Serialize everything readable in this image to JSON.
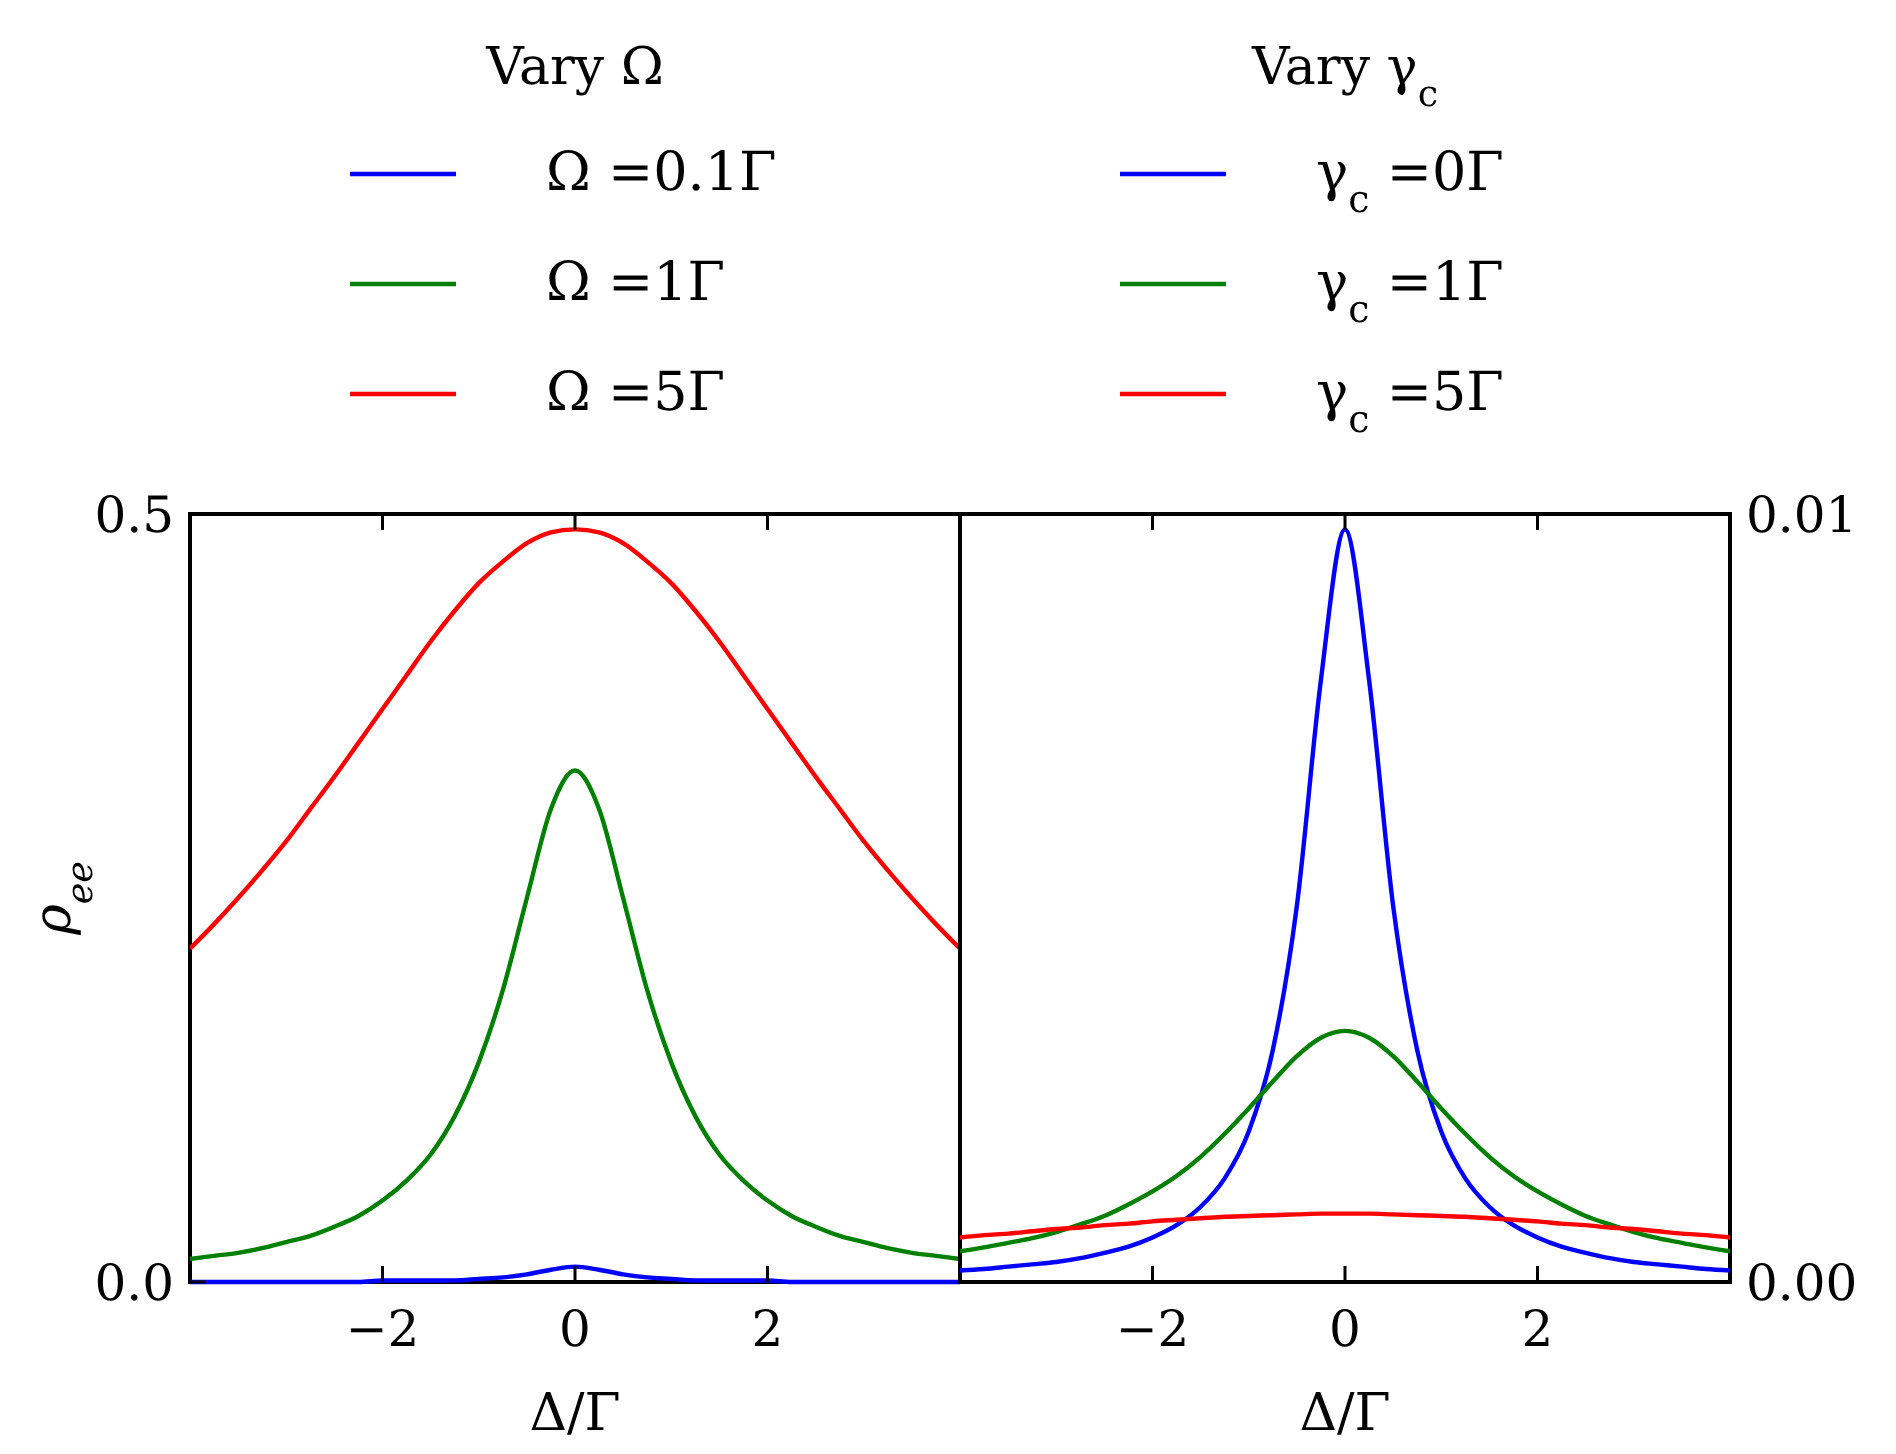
{
  "chart_data": [
    {
      "type": "line",
      "legend_title": "Vary Ω",
      "legend": "top",
      "xlabel": "Δ/Γ",
      "ylabel": "ρ$_{ee}$",
      "x": [
        -4,
        -3.75,
        -3.5,
        -3.25,
        -3,
        -2.75,
        -2.5,
        -2.25,
        -2,
        -1.75,
        -1.5,
        -1.25,
        -1,
        -0.75,
        -0.5,
        -0.25,
        0,
        0.25,
        0.5,
        0.75,
        1,
        1.25,
        1.5,
        1.75,
        2,
        2.25,
        2.5,
        2.75,
        3,
        3.25,
        3.5,
        3.75,
        4
      ],
      "xlim": [
        -4,
        4
      ],
      "xticks": [
        {
          "value": -2,
          "label": "−2"
        },
        {
          "value": 0,
          "label": "0"
        },
        {
          "value": 2,
          "label": "2"
        }
      ],
      "ylim": [
        0,
        0.5
      ],
      "yticks": [
        {
          "value": 0,
          "label": "0.0"
        },
        {
          "value": 0.5,
          "label": "0.5"
        }
      ],
      "series": [
        {
          "name": "Ω =0.1Γ",
          "color": "#0000ff",
          "values": [
            0,
            0,
            0,
            0,
            0,
            0,
            0,
            0,
            0.001,
            0.001,
            0.001,
            0.001,
            0.002,
            0.003,
            0.005,
            0.008,
            0.01,
            0.008,
            0.005,
            0.003,
            0.002,
            0.001,
            0.001,
            0.001,
            0.001,
            0,
            0,
            0,
            0,
            0,
            0,
            0,
            0
          ]
        },
        {
          "name": "Ω =1Γ",
          "color": "#008000",
          "values": [
            0.015,
            0.017,
            0.019,
            0.022,
            0.026,
            0.03,
            0.036,
            0.043,
            0.053,
            0.066,
            0.083,
            0.108,
            0.143,
            0.19,
            0.25,
            0.308,
            0.333,
            0.308,
            0.25,
            0.19,
            0.143,
            0.108,
            0.083,
            0.066,
            0.053,
            0.043,
            0.036,
            0.03,
            0.026,
            0.022,
            0.019,
            0.017,
            0.015
          ]
        },
        {
          "name": "Ω =5Γ",
          "color": "#ff0000",
          "values": [
            0.217,
            0.233,
            0.25,
            0.268,
            0.287,
            0.308,
            0.329,
            0.351,
            0.373,
            0.395,
            0.417,
            0.437,
            0.455,
            0.469,
            0.481,
            0.488,
            0.49,
            0.488,
            0.481,
            0.469,
            0.455,
            0.437,
            0.417,
            0.395,
            0.373,
            0.351,
            0.329,
            0.308,
            0.287,
            0.268,
            0.25,
            0.233,
            0.217
          ]
        }
      ]
    },
    {
      "type": "line",
      "legend_title": "Vary γ$_{c}$",
      "legend": "top",
      "xlabel": "Δ/Γ",
      "x": [
        -4,
        -3.75,
        -3.5,
        -3.25,
        -3,
        -2.75,
        -2.5,
        -2.25,
        -2,
        -1.75,
        -1.5,
        -1.25,
        -1,
        -0.75,
        -0.5,
        -0.25,
        0,
        0.25,
        0.5,
        0.75,
        1,
        1.25,
        1.5,
        1.75,
        2,
        2.25,
        2.5,
        2.75,
        3,
        3.25,
        3.5,
        3.75,
        4
      ],
      "xlim": [
        -4,
        4
      ],
      "xticks": [
        {
          "value": -2,
          "label": "−2"
        },
        {
          "value": 0,
          "label": "0"
        },
        {
          "value": 2,
          "label": "2"
        }
      ],
      "y2lim": [
        0,
        0.01
      ],
      "y2ticks": [
        {
          "value": 0,
          "label": "0.00"
        },
        0.01
      ],
      "series": [
        {
          "name": "γ$_{c}$ =0Γ",
          "color": "#0000ff",
          "axis": "y2",
          "values": [
            0.00015,
            0.00017,
            0.0002,
            0.00023,
            0.00026,
            0.00031,
            0.00038,
            0.00046,
            0.00058,
            0.00074,
            0.00098,
            0.00135,
            0.00196,
            0.00302,
            0.0049,
            0.00784,
            0.0098,
            0.00784,
            0.0049,
            0.00302,
            0.00196,
            0.00135,
            0.00098,
            0.00074,
            0.00058,
            0.00046,
            0.00038,
            0.00031,
            0.00026,
            0.00023,
            0.0002,
            0.00017,
            0.00015
          ]
        },
        {
          "name": "γ$_{c}$ =1Γ",
          "color": "#008000",
          "axis": "y2",
          "values": [
            0.0004,
            0.00045,
            0.00051,
            0.00057,
            0.00065,
            0.00075,
            0.00086,
            0.00101,
            0.00118,
            0.00138,
            0.00163,
            0.00193,
            0.00226,
            0.00261,
            0.00294,
            0.00318,
            0.00327,
            0.00318,
            0.00294,
            0.00261,
            0.00226,
            0.00193,
            0.00163,
            0.00138,
            0.00118,
            0.00101,
            0.00086,
            0.00075,
            0.00065,
            0.00057,
            0.00051,
            0.00045,
            0.0004
          ]
        },
        {
          "name": "γ$_{c}$ =5Γ",
          "color": "#ff0000",
          "axis": "y2",
          "values": [
            0.00058,
            0.00061,
            0.00063,
            0.00066,
            0.00069,
            0.00071,
            0.00074,
            0.00076,
            0.00079,
            0.00081,
            0.00083,
            0.00085,
            0.00086,
            0.00087,
            0.00088,
            0.00089,
            0.00089,
            0.00089,
            0.00088,
            0.00087,
            0.00086,
            0.00085,
            0.00083,
            0.00081,
            0.00079,
            0.00076,
            0.00074,
            0.00071,
            0.00069,
            0.00066,
            0.00063,
            0.00061,
            0.00058
          ]
        }
      ]
    }
  ]
}
